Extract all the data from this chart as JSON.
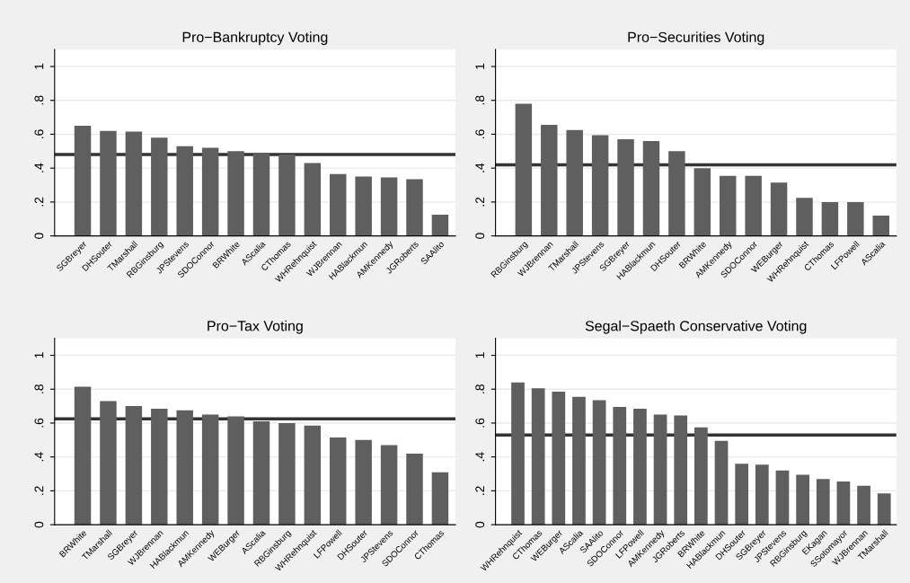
{
  "chart_data": [
    {
      "type": "bar",
      "title": "Pro−Bankruptcy Voting",
      "categories": [
        "SGBreyer",
        "DHSouter",
        "TMarshall",
        "RBGinsburg",
        "JPStevens",
        "SDOConnor",
        "BRWhite",
        "AScalia",
        "CThomas",
        "WHRehnquist",
        "WJBrennan",
        "HABlackmun",
        "AMKennedy",
        "JGRoberts",
        "SAAlito"
      ],
      "values": [
        0.65,
        0.62,
        0.615,
        0.58,
        0.53,
        0.52,
        0.5,
        0.49,
        0.48,
        0.43,
        0.365,
        0.35,
        0.345,
        0.335,
        0.125
      ],
      "color": "#5f5f5f",
      "ylim": [
        0,
        1.1
      ],
      "yticks": [
        0,
        {
          "value": 0.2,
          "label": ".2"
        },
        {
          "value": 0.4,
          "label": ".4"
        },
        {
          "value": 0.6,
          "label": ".6"
        },
        {
          "value": 0.8,
          "label": ".8"
        },
        1
      ],
      "grid": "y",
      "ref_lines": [
        {
          "axis": "y",
          "value": 0.48,
          "color": "#333333"
        }
      ]
    },
    {
      "type": "bar",
      "title": "Pro−Securities Voting",
      "categories": [
        "RBGinsburg",
        "WJBrennan",
        "TMarshall",
        "JPStevens",
        "SGBreyer",
        "HABlackmun",
        "DHSouter",
        "BRWhite",
        "AMKennedy",
        "SDOConnor",
        "WEBurger",
        "WHRehnquist",
        "CThomas",
        "LFPowell",
        "AScalia"
      ],
      "values": [
        0.78,
        0.655,
        0.625,
        0.595,
        0.57,
        0.56,
        0.5,
        0.4,
        0.355,
        0.355,
        0.315,
        0.225,
        0.2,
        0.2,
        0.12
      ],
      "color": "#5f5f5f",
      "ylim": [
        0,
        1.1
      ],
      "yticks": [
        0,
        {
          "value": 0.2,
          "label": ".2"
        },
        {
          "value": 0.4,
          "label": ".4"
        },
        {
          "value": 0.6,
          "label": ".6"
        },
        {
          "value": 0.8,
          "label": ".8"
        },
        1
      ],
      "grid": "y",
      "ref_lines": [
        {
          "axis": "y",
          "value": 0.42,
          "color": "#333333"
        }
      ]
    },
    {
      "type": "bar",
      "title": "Pro−Tax Voting",
      "categories": [
        "BRWhite",
        "TMarshall",
        "SGBreyer",
        "WJBrennan",
        "HABlackmun",
        "AMKennedy",
        "WEBurger",
        "AScalia",
        "RBGinsburg",
        "WHRehnquist",
        "LFPowell",
        "DHSouter",
        "JPStevens",
        "SDOConnor",
        "CThomas"
      ],
      "values": [
        0.815,
        0.73,
        0.7,
        0.685,
        0.675,
        0.65,
        0.64,
        0.61,
        0.6,
        0.585,
        0.515,
        0.5,
        0.47,
        0.42,
        0.31
      ],
      "color": "#5f5f5f",
      "ylim": [
        0,
        1.1
      ],
      "yticks": [
        0,
        {
          "value": 0.2,
          "label": ".2"
        },
        {
          "value": 0.4,
          "label": ".4"
        },
        {
          "value": 0.6,
          "label": ".6"
        },
        {
          "value": 0.8,
          "label": ".8"
        },
        1
      ],
      "grid": "y",
      "ref_lines": [
        {
          "axis": "y",
          "value": 0.625,
          "color": "#333333"
        }
      ]
    },
    {
      "type": "bar",
      "title": "Segal−Spaeth Conservative Voting",
      "categories": [
        "WHRehnquist",
        "CThomas",
        "WEBurger",
        "AScalia",
        "SAAlito",
        "SDOConnor",
        "LFPowell",
        "AMKennedy",
        "JGRoberts",
        "BRWhite",
        "HABlackmun",
        "DHSouter",
        "SGBreyer",
        "JPStevens",
        "RBGinsburg",
        "EKagan",
        "SSotomayor",
        "WJBrennan",
        "TMarshall"
      ],
      "values": [
        0.84,
        0.805,
        0.785,
        0.755,
        0.735,
        0.695,
        0.685,
        0.65,
        0.645,
        0.575,
        0.495,
        0.36,
        0.355,
        0.32,
        0.295,
        0.27,
        0.255,
        0.23,
        0.185
      ],
      "color": "#5f5f5f",
      "ylim": [
        0,
        1.1
      ],
      "yticks": [
        0,
        {
          "value": 0.2,
          "label": ".2"
        },
        {
          "value": 0.4,
          "label": ".4"
        },
        {
          "value": 0.6,
          "label": ".6"
        },
        {
          "value": 0.8,
          "label": ".8"
        },
        1
      ],
      "grid": "y",
      "ref_lines": [
        {
          "axis": "y",
          "value": 0.53,
          "color": "#333333"
        }
      ]
    }
  ]
}
